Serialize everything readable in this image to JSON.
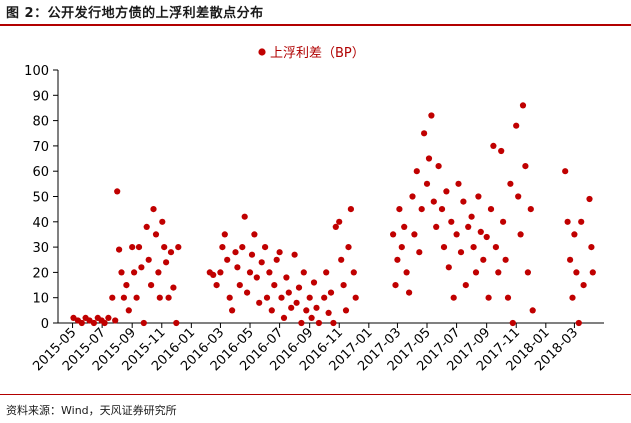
{
  "figure": {
    "title": "图 2：公开发行地方债的上浮利差散点分布",
    "source": "资料来源：Wind，天风证券研究所"
  },
  "colors": {
    "accent": "#b20000",
    "point": "#c00000"
  },
  "chart_data": {
    "type": "scatter",
    "title": "",
    "xlabel": "",
    "ylabel": "",
    "ylim": [
      0,
      100
    ],
    "yticks": [
      0,
      10,
      20,
      30,
      40,
      50,
      60,
      70,
      80,
      90,
      100
    ],
    "xlim": [
      "2015-04",
      "2018-05"
    ],
    "xticks": [
      "2015-05",
      "2015-07",
      "2015-09",
      "2015-11",
      "2016-01",
      "2016-03",
      "2016-05",
      "2016-07",
      "2016-09",
      "2016-11",
      "2017-01",
      "2017-03",
      "2017-05",
      "2017-07",
      "2017-09",
      "2017-11",
      "2018-01",
      "2018-03"
    ],
    "grid": false,
    "legend_position": "top-center",
    "series": [
      {
        "name": "上浮利差（BP）",
        "points": [
          [
            "2015-05-03",
            2
          ],
          [
            "2015-05-12",
            1
          ],
          [
            "2015-05-20",
            0
          ],
          [
            "2015-05-28",
            2
          ],
          [
            "2015-06-05",
            1
          ],
          [
            "2015-06-14",
            0
          ],
          [
            "2015-06-22",
            2
          ],
          [
            "2015-06-30",
            1
          ],
          [
            "2015-07-06",
            0
          ],
          [
            "2015-07-14",
            2
          ],
          [
            "2015-07-22",
            10
          ],
          [
            "2015-07-28",
            1
          ],
          [
            "2015-08-01",
            52
          ],
          [
            "2015-08-05",
            29
          ],
          [
            "2015-08-10",
            20
          ],
          [
            "2015-08-15",
            10
          ],
          [
            "2015-08-20",
            15
          ],
          [
            "2015-08-25",
            5
          ],
          [
            "2015-09-01",
            30
          ],
          [
            "2015-09-05",
            20
          ],
          [
            "2015-09-10",
            10
          ],
          [
            "2015-09-15",
            30
          ],
          [
            "2015-09-20",
            22
          ],
          [
            "2015-09-25",
            0
          ],
          [
            "2015-10-01",
            38
          ],
          [
            "2015-10-05",
            25
          ],
          [
            "2015-10-10",
            15
          ],
          [
            "2015-10-15",
            45
          ],
          [
            "2015-10-20",
            35
          ],
          [
            "2015-10-25",
            20
          ],
          [
            "2015-10-28",
            10
          ],
          [
            "2015-11-02",
            40
          ],
          [
            "2015-11-06",
            30
          ],
          [
            "2015-11-10",
            24
          ],
          [
            "2015-11-15",
            10
          ],
          [
            "2015-11-20",
            28
          ],
          [
            "2015-11-25",
            14
          ],
          [
            "2015-12-01",
            0
          ],
          [
            "2015-12-05",
            30
          ],
          [
            "2016-02-08",
            20
          ],
          [
            "2016-02-15",
            19
          ],
          [
            "2016-02-22",
            15
          ],
          [
            "2016-03-01",
            20
          ],
          [
            "2016-03-05",
            30
          ],
          [
            "2016-03-10",
            35
          ],
          [
            "2016-03-15",
            25
          ],
          [
            "2016-03-20",
            10
          ],
          [
            "2016-03-25",
            5
          ],
          [
            "2016-04-01",
            28
          ],
          [
            "2016-04-05",
            22
          ],
          [
            "2016-04-10",
            15
          ],
          [
            "2016-04-15",
            30
          ],
          [
            "2016-04-20",
            42
          ],
          [
            "2016-04-25",
            12
          ],
          [
            "2016-05-01",
            20
          ],
          [
            "2016-05-05",
            27
          ],
          [
            "2016-05-10",
            35
          ],
          [
            "2016-05-15",
            18
          ],
          [
            "2016-05-20",
            8
          ],
          [
            "2016-05-25",
            24
          ],
          [
            "2016-06-01",
            30
          ],
          [
            "2016-06-05",
            10
          ],
          [
            "2016-06-10",
            20
          ],
          [
            "2016-06-15",
            5
          ],
          [
            "2016-06-20",
            15
          ],
          [
            "2016-06-25",
            25
          ],
          [
            "2016-07-01",
            28
          ],
          [
            "2016-07-05",
            10
          ],
          [
            "2016-07-10",
            2
          ],
          [
            "2016-07-15",
            18
          ],
          [
            "2016-07-20",
            12
          ],
          [
            "2016-07-25",
            6
          ],
          [
            "2016-08-01",
            27
          ],
          [
            "2016-08-05",
            8
          ],
          [
            "2016-08-10",
            14
          ],
          [
            "2016-08-15",
            0
          ],
          [
            "2016-08-20",
            20
          ],
          [
            "2016-08-25",
            5
          ],
          [
            "2016-09-01",
            10
          ],
          [
            "2016-09-05",
            2
          ],
          [
            "2016-09-10",
            16
          ],
          [
            "2016-09-15",
            6
          ],
          [
            "2016-09-20",
            0
          ],
          [
            "2016-10-01",
            10
          ],
          [
            "2016-10-05",
            20
          ],
          [
            "2016-10-10",
            4
          ],
          [
            "2016-10-15",
            12
          ],
          [
            "2016-10-20",
            0
          ],
          [
            "2016-10-25",
            38
          ],
          [
            "2016-11-01",
            40
          ],
          [
            "2016-11-05",
            25
          ],
          [
            "2016-11-10",
            15
          ],
          [
            "2016-11-15",
            5
          ],
          [
            "2016-11-20",
            30
          ],
          [
            "2016-11-25",
            45
          ],
          [
            "2016-12-01",
            20
          ],
          [
            "2016-12-05",
            10
          ],
          [
            "2017-02-20",
            35
          ],
          [
            "2017-02-25",
            15
          ],
          [
            "2017-03-01",
            25
          ],
          [
            "2017-03-05",
            45
          ],
          [
            "2017-03-10",
            30
          ],
          [
            "2017-03-15",
            38
          ],
          [
            "2017-03-20",
            20
          ],
          [
            "2017-03-25",
            12
          ],
          [
            "2017-04-01",
            50
          ],
          [
            "2017-04-05",
            35
          ],
          [
            "2017-04-10",
            60
          ],
          [
            "2017-04-15",
            28
          ],
          [
            "2017-04-20",
            45
          ],
          [
            "2017-04-25",
            75
          ],
          [
            "2017-05-01",
            55
          ],
          [
            "2017-05-05",
            65
          ],
          [
            "2017-05-10",
            82
          ],
          [
            "2017-05-15",
            48
          ],
          [
            "2017-05-20",
            38
          ],
          [
            "2017-05-25",
            62
          ],
          [
            "2017-06-01",
            45
          ],
          [
            "2017-06-05",
            30
          ],
          [
            "2017-06-10",
            52
          ],
          [
            "2017-06-15",
            22
          ],
          [
            "2017-06-20",
            40
          ],
          [
            "2017-06-25",
            10
          ],
          [
            "2017-07-01",
            35
          ],
          [
            "2017-07-05",
            55
          ],
          [
            "2017-07-10",
            28
          ],
          [
            "2017-07-15",
            48
          ],
          [
            "2017-07-20",
            15
          ],
          [
            "2017-07-25",
            38
          ],
          [
            "2017-08-01",
            42
          ],
          [
            "2017-08-05",
            30
          ],
          [
            "2017-08-10",
            20
          ],
          [
            "2017-08-15",
            50
          ],
          [
            "2017-08-20",
            36
          ],
          [
            "2017-08-25",
            25
          ],
          [
            "2017-09-01",
            34
          ],
          [
            "2017-09-05",
            10
          ],
          [
            "2017-09-10",
            45
          ],
          [
            "2017-09-15",
            70
          ],
          [
            "2017-09-20",
            30
          ],
          [
            "2017-09-25",
            20
          ],
          [
            "2017-10-01",
            68
          ],
          [
            "2017-10-05",
            40
          ],
          [
            "2017-10-10",
            25
          ],
          [
            "2017-10-15",
            10
          ],
          [
            "2017-10-20",
            55
          ],
          [
            "2017-10-25",
            0
          ],
          [
            "2017-11-01",
            78
          ],
          [
            "2017-11-05",
            50
          ],
          [
            "2017-11-10",
            35
          ],
          [
            "2017-11-15",
            86
          ],
          [
            "2017-11-20",
            62
          ],
          [
            "2017-11-25",
            20
          ],
          [
            "2017-12-01",
            45
          ],
          [
            "2017-12-05",
            5
          ],
          [
            "2018-02-10",
            60
          ],
          [
            "2018-02-15",
            40
          ],
          [
            "2018-02-20",
            25
          ],
          [
            "2018-02-25",
            10
          ],
          [
            "2018-03-01",
            35
          ],
          [
            "2018-03-05",
            20
          ],
          [
            "2018-03-10",
            0
          ],
          [
            "2018-03-15",
            40
          ],
          [
            "2018-03-20",
            15
          ],
          [
            "2018-04-01",
            49
          ],
          [
            "2018-04-05",
            30
          ],
          [
            "2018-04-08",
            20
          ]
        ]
      }
    ]
  }
}
